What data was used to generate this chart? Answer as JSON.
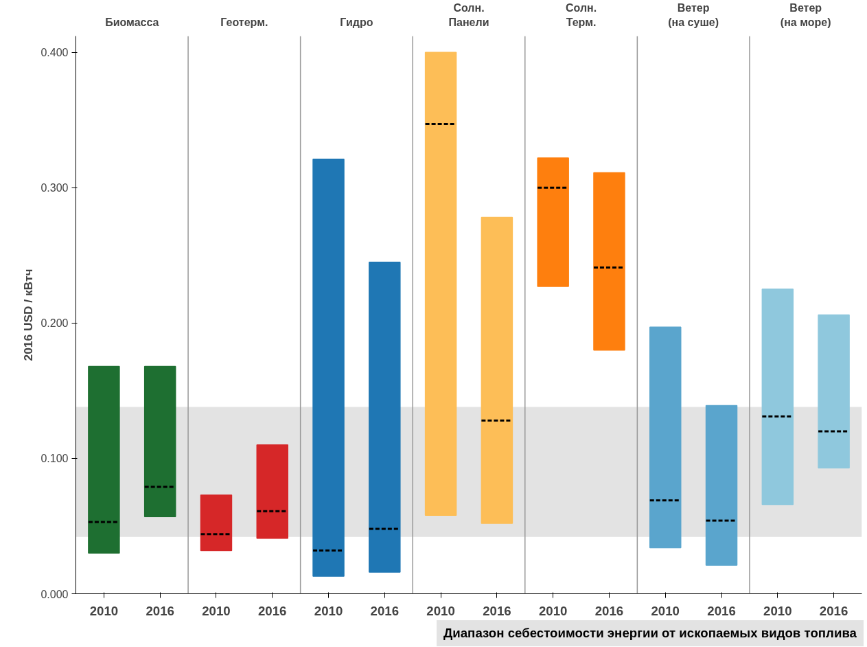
{
  "chart_data": {
    "type": "box",
    "ylabel": "2016 USD / кВтч",
    "categories": [
      "2010",
      "2016",
      "2010",
      "2016",
      "2010",
      "2016",
      "2010",
      "2016",
      "2010",
      "2016",
      "2010",
      "2016",
      "2010",
      "2016"
    ],
    "boxes": [
      {
        "low": 0.03,
        "q1": 0.03,
        "median": 0.053,
        "q3": 0.168,
        "high": 0.168
      },
      {
        "low": 0.057,
        "q1": 0.057,
        "median": 0.079,
        "q3": 0.168,
        "high": 0.168
      },
      {
        "low": 0.032,
        "q1": 0.032,
        "median": 0.044,
        "q3": 0.073,
        "high": 0.073
      },
      {
        "low": 0.041,
        "q1": 0.041,
        "median": 0.061,
        "q3": 0.11,
        "high": 0.11
      },
      {
        "low": 0.013,
        "q1": 0.013,
        "median": 0.032,
        "q3": 0.321,
        "high": 0.321
      },
      {
        "low": 0.016,
        "q1": 0.016,
        "median": 0.048,
        "q3": 0.245,
        "high": 0.245
      },
      {
        "low": 0.058,
        "q1": 0.058,
        "median": 0.347,
        "q3": 0.4,
        "high": 0.4
      },
      {
        "low": 0.052,
        "q1": 0.052,
        "median": 0.128,
        "q3": 0.278,
        "high": 0.278
      },
      {
        "low": 0.227,
        "q1": 0.227,
        "median": 0.3,
        "q3": 0.322,
        "high": 0.322
      },
      {
        "low": 0.18,
        "q1": 0.18,
        "median": 0.241,
        "q3": 0.311,
        "high": 0.311
      },
      {
        "low": 0.034,
        "q1": 0.034,
        "median": 0.069,
        "q3": 0.197,
        "high": 0.197
      },
      {
        "low": 0.021,
        "q1": 0.021,
        "median": 0.054,
        "q3": 0.139,
        "high": 0.139
      },
      {
        "low": 0.066,
        "q1": 0.066,
        "median": 0.131,
        "q3": 0.225,
        "high": 0.225
      },
      {
        "low": 0.093,
        "q1": 0.093,
        "median": 0.12,
        "q3": 0.206,
        "high": 0.206
      }
    ],
    "colors": [
      "#1e6f31",
      "#1e6f31",
      "#d62728",
      "#d62728",
      "#1f77b4",
      "#1f77b4",
      "#fdbe57",
      "#fdbe57",
      "#fe7f0e",
      "#fe7f0e",
      "#5aa5cd",
      "#5aa5cd",
      "#8fc8dd",
      "#8fc8dd"
    ],
    "line_style": "dashed",
    "ylim": [
      0,
      0.412
    ],
    "yticks": [
      {
        "value": 0,
        "label": "0.000"
      },
      {
        "value": 0.1,
        "label": "0.100"
      },
      {
        "value": 0.2,
        "label": "0.200"
      },
      {
        "value": 0.3,
        "label": "0.300"
      },
      {
        "value": 0.4,
        "label": "0.400"
      }
    ],
    "bands": [
      {
        "axis": "y",
        "from": 0.042,
        "to": 0.138,
        "color": "#e3e3e3"
      }
    ],
    "annotations": [
      "Биомасса",
      "Геотерм.",
      "Гидро",
      "Солн.\nПанели",
      "Солн.\nТерм.",
      "Ветер\n(на суше)",
      "Ветер\n(на море)",
      "Диапазон себестоимости энергии от ископаемых видов топлива"
    ],
    "legend": false
  }
}
